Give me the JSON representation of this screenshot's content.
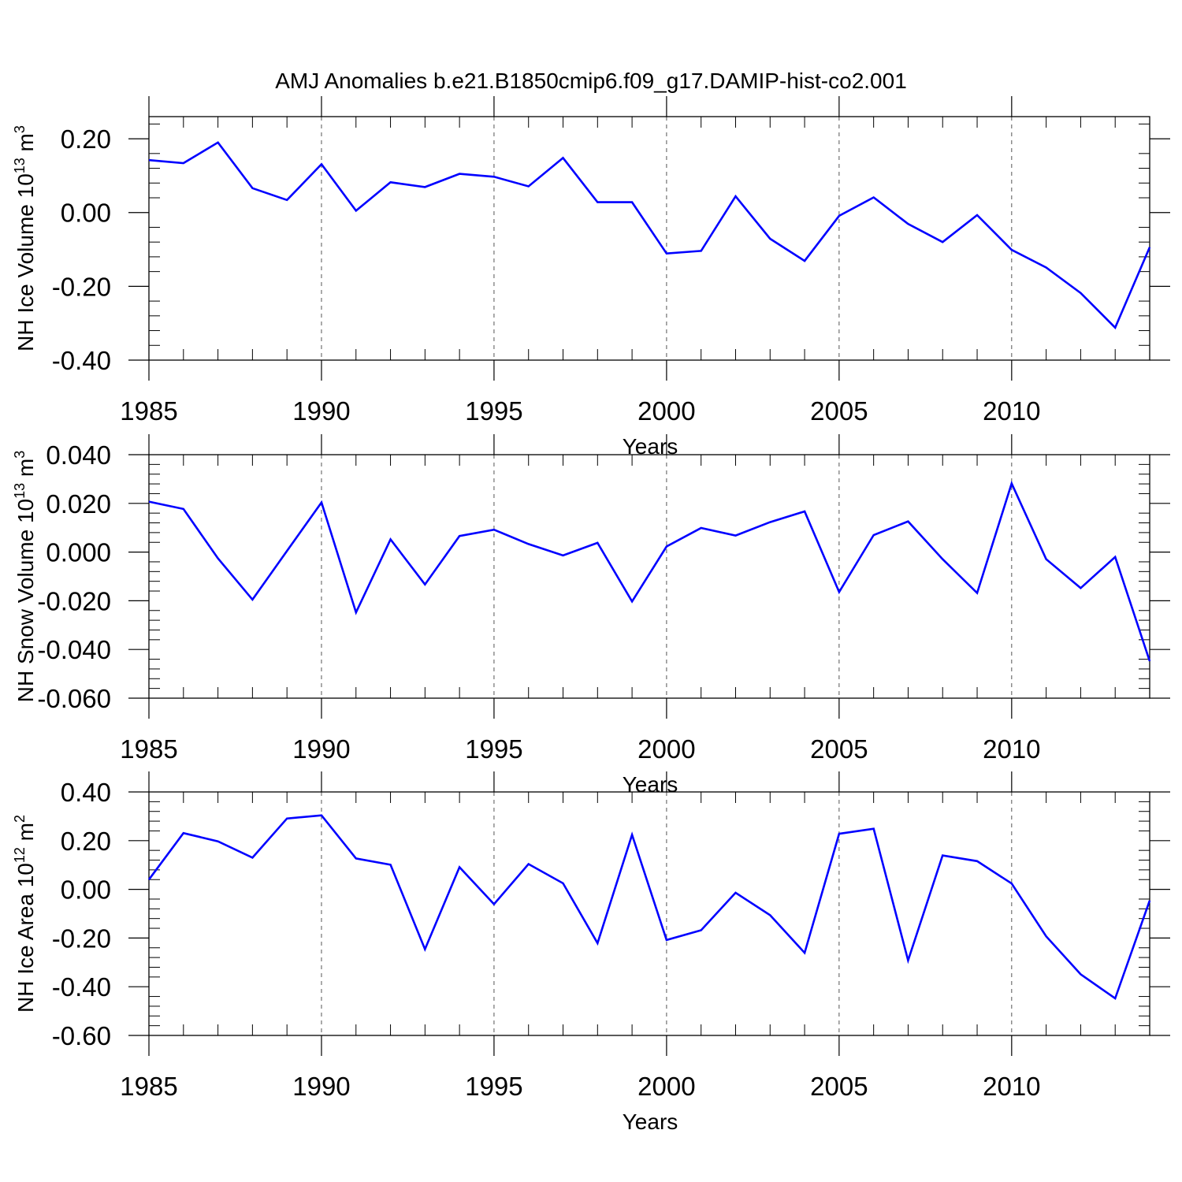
{
  "title": "AMJ Anomalies b.e21.B1850cmip6.f09_g17.DAMIP-hist-co2.001",
  "colors": {
    "line": "#0000ff",
    "axis": "#000000",
    "grid": "#555555"
  },
  "chart_data": [
    {
      "type": "line",
      "ylabel": "NH Ice Volume 10",
      "ylabel_exp": "13",
      "ylabel_unit": " m",
      "ylabel_unit_exp": "3",
      "xlabel": "Years",
      "xlim": [
        1985,
        2014
      ],
      "ylim": [
        -0.4,
        0.26
      ],
      "yticks": [
        -0.4,
        -0.2,
        0.0,
        0.2
      ],
      "ytick_labels": [
        "-0.40",
        "-0.20",
        "0.00",
        "0.20"
      ],
      "xticks": [
        1985,
        1990,
        1995,
        2000,
        2005,
        2010
      ],
      "xtick_labels": [
        "1985",
        "1990",
        "1995",
        "2000",
        "2005",
        "2010"
      ],
      "grid": "vertical dashed at 5-year ticks",
      "series": [
        {
          "name": "NH Ice Volume",
          "x": [
            1985,
            1986,
            1987,
            1988,
            1989,
            1990,
            1991,
            1992,
            1993,
            1994,
            1995,
            1996,
            1997,
            1998,
            1999,
            2000,
            2001,
            2002,
            2003,
            2004,
            2005,
            2006,
            2007,
            2008,
            2009,
            2010,
            2011,
            2012,
            2013,
            2014
          ],
          "values": [
            0.142,
            0.134,
            0.19,
            0.066,
            0.034,
            0.131,
            0.005,
            0.082,
            0.069,
            0.105,
            0.097,
            0.071,
            0.148,
            0.028,
            0.028,
            -0.111,
            -0.104,
            0.044,
            -0.071,
            -0.131,
            -0.009,
            0.041,
            -0.031,
            -0.08,
            -0.007,
            -0.101,
            -0.149,
            -0.218,
            -0.312,
            -0.094
          ]
        }
      ]
    },
    {
      "type": "line",
      "ylabel": "NH Snow Volume 10",
      "ylabel_exp": "13",
      "ylabel_unit": " m",
      "ylabel_unit_exp": "3",
      "xlabel": "Years",
      "xlim": [
        1985,
        2014
      ],
      "ylim": [
        -0.06,
        0.04
      ],
      "yticks": [
        -0.06,
        -0.04,
        -0.02,
        0.0,
        0.02,
        0.04
      ],
      "ytick_labels": [
        "-0.060",
        "-0.040",
        "-0.020",
        "0.000",
        "0.020",
        "0.040"
      ],
      "xticks": [
        1985,
        1990,
        1995,
        2000,
        2005,
        2010
      ],
      "xtick_labels": [
        "1985",
        "1990",
        "1995",
        "2000",
        "2005",
        "2010"
      ],
      "grid": "vertical dashed at 5-year ticks",
      "series": [
        {
          "name": "NH Snow Volume",
          "x": [
            1985,
            1986,
            1987,
            1988,
            1989,
            1990,
            1991,
            1992,
            1993,
            1994,
            1995,
            1996,
            1997,
            1998,
            1999,
            2000,
            2001,
            2002,
            2003,
            2004,
            2005,
            2006,
            2007,
            2008,
            2009,
            2010,
            2011,
            2012,
            2013,
            2014
          ],
          "values": [
            0.0207,
            0.0177,
            -0.0026,
            -0.0195,
            0.0005,
            0.0204,
            -0.0248,
            0.0052,
            -0.0133,
            0.0066,
            0.0092,
            0.0033,
            -0.0014,
            0.0038,
            -0.0203,
            0.0023,
            0.0099,
            0.0068,
            0.0123,
            0.0167,
            -0.0164,
            0.007,
            0.0126,
            -0.0029,
            -0.0168,
            0.0282,
            -0.0029,
            -0.0148,
            -0.002,
            -0.0448
          ]
        }
      ]
    },
    {
      "type": "line",
      "ylabel": "NH Ice Area 10",
      "ylabel_exp": "12",
      "ylabel_unit": " m",
      "ylabel_unit_exp": "2",
      "xlabel": "Years",
      "xlim": [
        1985,
        2014
      ],
      "ylim": [
        -0.6,
        0.4
      ],
      "yticks": [
        -0.6,
        -0.4,
        -0.2,
        0.0,
        0.2,
        0.4
      ],
      "ytick_labels": [
        "-0.60",
        "-0.40",
        "-0.20",
        "0.00",
        "0.20",
        "0.40"
      ],
      "xticks": [
        1985,
        1990,
        1995,
        2000,
        2005,
        2010
      ],
      "xtick_labels": [
        "1985",
        "1990",
        "1995",
        "2000",
        "2005",
        "2010"
      ],
      "grid": "vertical dashed at 5-year ticks",
      "series": [
        {
          "name": "NH Ice Area",
          "x": [
            1985,
            1986,
            1987,
            1988,
            1989,
            1990,
            1991,
            1992,
            1993,
            1994,
            1995,
            1996,
            1997,
            1998,
            1999,
            2000,
            2001,
            2002,
            2003,
            2004,
            2005,
            2006,
            2007,
            2008,
            2009,
            2010,
            2011,
            2012,
            2013,
            2014
          ],
          "values": [
            0.04,
            0.231,
            0.197,
            0.13,
            0.291,
            0.304,
            0.127,
            0.101,
            -0.246,
            0.091,
            -0.061,
            0.104,
            0.025,
            -0.221,
            0.224,
            -0.208,
            -0.168,
            -0.014,
            -0.106,
            -0.261,
            0.228,
            0.249,
            -0.292,
            0.139,
            0.116,
            0.024,
            -0.193,
            -0.349,
            -0.448,
            -0.046
          ]
        }
      ]
    }
  ]
}
